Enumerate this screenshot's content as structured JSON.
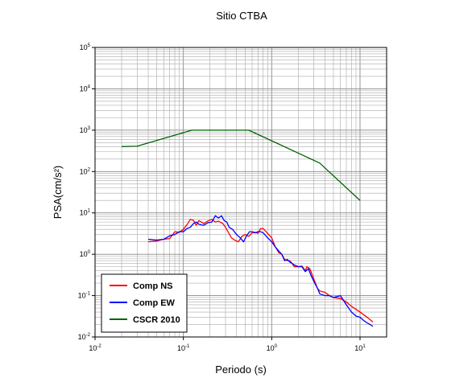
{
  "chart_data": {
    "type": "line",
    "title": "Sitio CTBA",
    "xlabel": "Periodo (s)",
    "ylabel": "PSA(cm/s²)",
    "xscale": "log",
    "yscale": "log",
    "xlim": [
      0.01,
      20
    ],
    "ylim": [
      0.01,
      100000
    ],
    "grid": true,
    "legend_position": "bottom-left",
    "x_ticks": [
      {
        "base": "10",
        "exp": "-2",
        "value": 0.01
      },
      {
        "base": "10",
        "exp": "-1",
        "value": 0.1
      },
      {
        "base": "10",
        "exp": "0",
        "value": 1
      },
      {
        "base": "10",
        "exp": "1",
        "value": 10
      }
    ],
    "y_ticks": [
      {
        "base": "10",
        "exp": "-2",
        "value": 0.01
      },
      {
        "base": "10",
        "exp": "-1",
        "value": 0.1
      },
      {
        "base": "10",
        "exp": "0",
        "value": 1
      },
      {
        "base": "10",
        "exp": "1",
        "value": 10
      },
      {
        "base": "10",
        "exp": "2",
        "value": 100
      },
      {
        "base": "10",
        "exp": "3",
        "value": 1000
      },
      {
        "base": "10",
        "exp": "4",
        "value": 10000
      },
      {
        "base": "10",
        "exp": "5",
        "value": 100000
      }
    ],
    "series": [
      {
        "name": "Comp NS",
        "color": "#ff0000",
        "points": [
          [
            0.04,
            2.0
          ],
          [
            0.05,
            2.1
          ],
          [
            0.06,
            2.3
          ],
          [
            0.07,
            2.4
          ],
          [
            0.08,
            3.5
          ],
          [
            0.09,
            3.4
          ],
          [
            0.1,
            4.0
          ],
          [
            0.11,
            5.2
          ],
          [
            0.12,
            7.0
          ],
          [
            0.13,
            6.6
          ],
          [
            0.14,
            5.0
          ],
          [
            0.15,
            6.5
          ],
          [
            0.17,
            5.5
          ],
          [
            0.19,
            6.4
          ],
          [
            0.21,
            7.0
          ],
          [
            0.23,
            6.0
          ],
          [
            0.25,
            6.3
          ],
          [
            0.28,
            5.5
          ],
          [
            0.3,
            4.5
          ],
          [
            0.32,
            3.5
          ],
          [
            0.35,
            2.5
          ],
          [
            0.38,
            2.2
          ],
          [
            0.42,
            2.0
          ],
          [
            0.46,
            2.7
          ],
          [
            0.5,
            3.0
          ],
          [
            0.55,
            2.7
          ],
          [
            0.6,
            3.3
          ],
          [
            0.65,
            3.4
          ],
          [
            0.7,
            3.2
          ],
          [
            0.75,
            4.2
          ],
          [
            0.8,
            4.2
          ],
          [
            0.9,
            3.2
          ],
          [
            1.0,
            2.5
          ],
          [
            1.1,
            1.5
          ],
          [
            1.2,
            1.1
          ],
          [
            1.3,
            1.0
          ],
          [
            1.4,
            0.75
          ],
          [
            1.5,
            0.7
          ],
          [
            1.6,
            0.7
          ],
          [
            1.7,
            0.6
          ],
          [
            1.8,
            0.5
          ],
          [
            2.0,
            0.5
          ],
          [
            2.2,
            0.52
          ],
          [
            2.4,
            0.4
          ],
          [
            2.5,
            0.5
          ],
          [
            2.7,
            0.45
          ],
          [
            3.0,
            0.25
          ],
          [
            3.3,
            0.15
          ],
          [
            3.5,
            0.13
          ],
          [
            4.0,
            0.12
          ],
          [
            4.5,
            0.1
          ],
          [
            5.0,
            0.09
          ],
          [
            6.0,
            0.085
          ],
          [
            7.0,
            0.07
          ],
          [
            8.0,
            0.055
          ],
          [
            10.0,
            0.04
          ],
          [
            12.0,
            0.03
          ],
          [
            14.0,
            0.023
          ]
        ]
      },
      {
        "name": "Comp EW",
        "color": "#0000ff",
        "points": [
          [
            0.04,
            2.3
          ],
          [
            0.05,
            2.2
          ],
          [
            0.06,
            2.3
          ],
          [
            0.07,
            2.8
          ],
          [
            0.08,
            3.0
          ],
          [
            0.09,
            3.5
          ],
          [
            0.1,
            3.5
          ],
          [
            0.11,
            4.2
          ],
          [
            0.12,
            4.5
          ],
          [
            0.13,
            5.5
          ],
          [
            0.14,
            6.0
          ],
          [
            0.15,
            5.3
          ],
          [
            0.17,
            5.0
          ],
          [
            0.19,
            5.8
          ],
          [
            0.21,
            6.0
          ],
          [
            0.23,
            8.5
          ],
          [
            0.25,
            7.5
          ],
          [
            0.27,
            8.5
          ],
          [
            0.29,
            6.5
          ],
          [
            0.31,
            6.0
          ],
          [
            0.33,
            4.5
          ],
          [
            0.36,
            4.0
          ],
          [
            0.4,
            3.0
          ],
          [
            0.44,
            2.5
          ],
          [
            0.48,
            2.0
          ],
          [
            0.52,
            2.8
          ],
          [
            0.56,
            3.5
          ],
          [
            0.6,
            3.5
          ],
          [
            0.65,
            3.3
          ],
          [
            0.7,
            3.5
          ],
          [
            0.75,
            3.5
          ],
          [
            0.8,
            3.3
          ],
          [
            0.9,
            2.5
          ],
          [
            1.0,
            2.0
          ],
          [
            1.1,
            1.5
          ],
          [
            1.2,
            1.2
          ],
          [
            1.3,
            1.0
          ],
          [
            1.4,
            0.7
          ],
          [
            1.5,
            0.75
          ],
          [
            1.6,
            0.65
          ],
          [
            1.7,
            0.6
          ],
          [
            1.8,
            0.55
          ],
          [
            2.0,
            0.5
          ],
          [
            2.2,
            0.5
          ],
          [
            2.4,
            0.38
          ],
          [
            2.6,
            0.45
          ],
          [
            2.8,
            0.3
          ],
          [
            3.0,
            0.22
          ],
          [
            3.3,
            0.15
          ],
          [
            3.5,
            0.11
          ],
          [
            4.0,
            0.1
          ],
          [
            4.5,
            0.1
          ],
          [
            5.0,
            0.09
          ],
          [
            6.0,
            0.1
          ],
          [
            7.0,
            0.06
          ],
          [
            8.0,
            0.04
          ],
          [
            9.0,
            0.032
          ],
          [
            10.0,
            0.03
          ],
          [
            11.0,
            0.025
          ],
          [
            12.0,
            0.022
          ],
          [
            13.0,
            0.02
          ],
          [
            14.0,
            0.018
          ]
        ]
      },
      {
        "name": "CSCR 2010",
        "color": "#006400",
        "points": [
          [
            0.02,
            400
          ],
          [
            0.03,
            410
          ],
          [
            0.125,
            1000
          ],
          [
            0.55,
            1000
          ],
          [
            3.5,
            160
          ],
          [
            10.0,
            20
          ]
        ]
      }
    ]
  }
}
